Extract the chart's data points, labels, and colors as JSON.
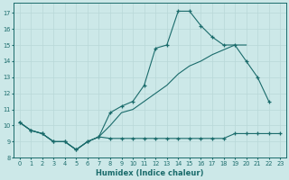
{
  "bg_color": "#cce8e8",
  "line_color": "#1a6b6b",
  "grid_color": "#b8d8d8",
  "xlabel": "Humidex (Indice chaleur)",
  "xlim": [
    -0.5,
    23.5
  ],
  "ylim": [
    8.0,
    17.6
  ],
  "xticks": [
    0,
    1,
    2,
    3,
    4,
    5,
    6,
    7,
    8,
    9,
    10,
    11,
    12,
    13,
    14,
    15,
    16,
    17,
    18,
    19,
    20,
    21,
    22,
    23
  ],
  "yticks": [
    8,
    9,
    10,
    11,
    12,
    13,
    14,
    15,
    16,
    17
  ],
  "line1_x": [
    0,
    1,
    2,
    3,
    4,
    5,
    6,
    7,
    8,
    9,
    10,
    11,
    12,
    13,
    14,
    15,
    16,
    17,
    18,
    19,
    20,
    21,
    22
  ],
  "line1_y": [
    10.2,
    9.7,
    9.5,
    9.0,
    9.0,
    8.5,
    9.0,
    9.3,
    10.8,
    11.2,
    11.5,
    12.5,
    14.8,
    15.0,
    17.1,
    17.1,
    16.2,
    15.5,
    15.0,
    15.0,
    14.0,
    13.0,
    11.5
  ],
  "line2_x": [
    0,
    1,
    2,
    3,
    4,
    5,
    6,
    7,
    8,
    9,
    10,
    11,
    12,
    13,
    14,
    15,
    16,
    17,
    18,
    19,
    20,
    21,
    22,
    23
  ],
  "line2_y": [
    10.2,
    9.7,
    9.5,
    9.0,
    9.0,
    8.5,
    9.0,
    9.3,
    9.2,
    9.2,
    9.2,
    9.2,
    9.2,
    9.2,
    9.2,
    9.2,
    9.2,
    9.2,
    9.2,
    9.5,
    9.5,
    9.5,
    9.5,
    9.5
  ],
  "line3_x": [
    0,
    1,
    2,
    3,
    4,
    5,
    6,
    7,
    8,
    9,
    10,
    11,
    12,
    13,
    14,
    15,
    16,
    17,
    18,
    19,
    20
  ],
  "line3_y": [
    10.2,
    9.7,
    9.5,
    9.0,
    9.0,
    8.5,
    9.0,
    9.3,
    10.0,
    10.8,
    11.0,
    11.5,
    12.0,
    12.5,
    13.2,
    13.7,
    14.0,
    14.4,
    14.7,
    15.0,
    15.0
  ]
}
